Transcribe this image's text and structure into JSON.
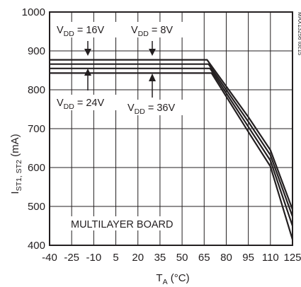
{
  "chart_data": {
    "type": "line",
    "title": "",
    "xlabel": {
      "main": "T",
      "sub": "A",
      "unit": " (°C)"
    },
    "ylabel": {
      "main": "I",
      "sub": "ST1, ST2",
      "unit": " (mA)"
    },
    "xlim": [
      -40,
      125
    ],
    "ylim": [
      400,
      1000
    ],
    "x_ticks": [
      -40,
      -25,
      -10,
      5,
      20,
      35,
      50,
      65,
      80,
      95,
      110,
      125
    ],
    "y_ticks": [
      400,
      500,
      600,
      700,
      800,
      900,
      1000
    ],
    "grid": true,
    "series": [
      {
        "name": "VDD = 16V",
        "points": [
          [
            -40,
            877
          ],
          [
            67,
            877
          ],
          [
            95,
            730
          ],
          [
            110,
            645
          ],
          [
            125,
            492
          ]
        ]
      },
      {
        "name": "VDD = 8V",
        "points": [
          [
            -40,
            866
          ],
          [
            68,
            866
          ],
          [
            95,
            718
          ],
          [
            110,
            632
          ],
          [
            125,
            474
          ]
        ]
      },
      {
        "name": "VDD = 36V",
        "points": [
          [
            -40,
            855
          ],
          [
            69,
            855
          ],
          [
            95,
            705
          ],
          [
            110,
            618
          ],
          [
            125,
            450
          ]
        ]
      },
      {
        "name": "VDD = 24V",
        "points": [
          [
            -40,
            843
          ],
          [
            70,
            843
          ],
          [
            95,
            692
          ],
          [
            110,
            603
          ],
          [
            125,
            415
          ]
        ]
      }
    ],
    "annotations": [
      {
        "pre": "V",
        "sub": "DD",
        "post": " = 16V"
      },
      {
        "pre": "V",
        "sub": "DD",
        "post": " = 8V"
      },
      {
        "pre": "V",
        "sub": "DD",
        "post": " = 24V"
      },
      {
        "pre": "V",
        "sub": "DD",
        "post": " = 36V"
      },
      {
        "text": "MULTILAYER BOARD"
      }
    ],
    "figure_id": "MAX13256 toc15"
  }
}
